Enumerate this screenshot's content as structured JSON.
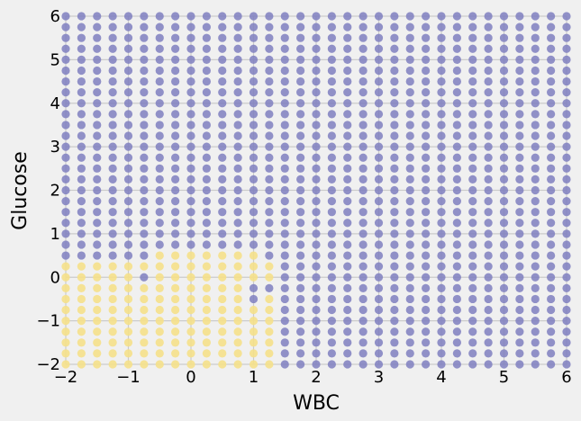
{
  "chart_data": {
    "type": "scatter",
    "title": "",
    "xlabel": "WBC",
    "ylabel": "Glucose",
    "xlim": [
      -2,
      6
    ],
    "ylim": [
      -2,
      6
    ],
    "xticks": [
      "−2",
      "−1",
      "0",
      "1",
      "2",
      "3",
      "4",
      "5",
      "6"
    ],
    "yticks": [
      "−2",
      "−1",
      "0",
      "1",
      "2",
      "3",
      "4",
      "5",
      "6"
    ],
    "grid": true,
    "colors": {
      "class_a": "#7f7fbf",
      "class_b": "#f5e08a",
      "background": "#f0f0f0",
      "grid": "#cbcbcb"
    },
    "grid_points": {
      "x_start": -2,
      "x_step": 0.25,
      "x_count": 33,
      "y_start": -2,
      "y_step": 0.25,
      "y_count": 33
    },
    "region_b": [
      {
        "x_min": -2,
        "x_max": 1.25,
        "y_min": -2,
        "y_max": 0.25
      },
      {
        "x_min": -0.5,
        "x_max": 1.0,
        "y_min": 0.5,
        "y_max": 0.5
      }
    ],
    "exceptions_a": [
      {
        "x": -0.75,
        "y": 0.0
      },
      {
        "x": 1.0,
        "y": -0.25
      },
      {
        "x": 1.25,
        "y": -0.25
      },
      {
        "x": 1.0,
        "y": -0.5
      }
    ],
    "exceptions_b": [
      {
        "x": 1.25,
        "y": 0.25
      },
      {
        "x": 1.25,
        "y": 0.0
      }
    ]
  }
}
